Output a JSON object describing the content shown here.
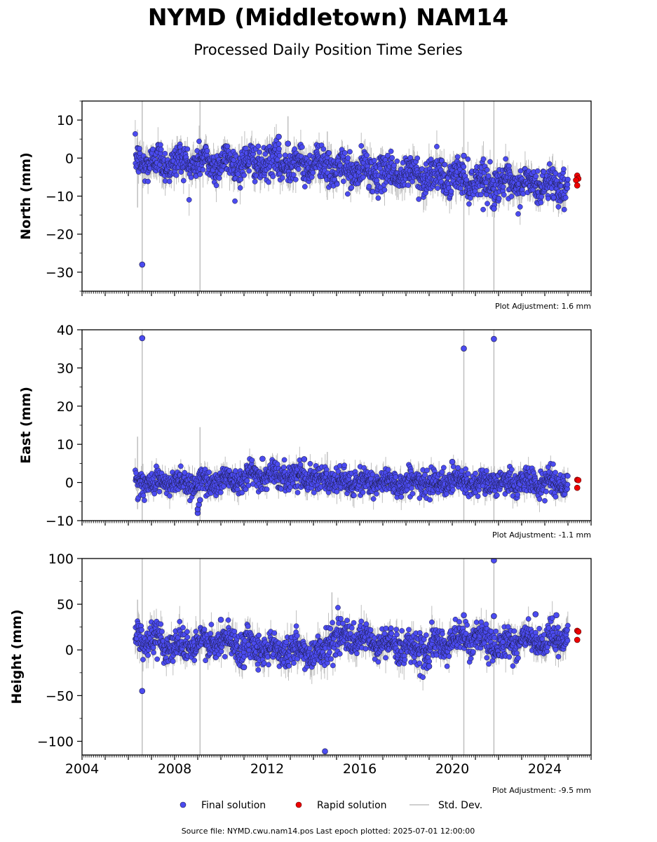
{
  "title": "NYMD (Middletown) NAM14",
  "subtitle": "Processed Daily Position Time Series",
  "source_text": "Source file: NYMD.cwu.nam14.pos  Last epoch plotted: 2025-07-01 12:00:00",
  "legend": {
    "final": "Final solution",
    "rapid": "Rapid solution",
    "std": "Std. Dev."
  },
  "colors": {
    "final_fill": "#4b4bf0",
    "final_edge": "#1a1a40",
    "rapid_fill": "#ee0000",
    "std_line": "#bfbfbf"
  },
  "chart_data": [
    {
      "type": "scatter",
      "ylabel": "North (mm)",
      "adjustment": "Plot Adjustment: 1.6 mm",
      "xlim": [
        2004,
        2026
      ],
      "ylim": [
        -35,
        15
      ],
      "xticks": [
        2004,
        2008,
        2012,
        2016,
        2020,
        2024
      ],
      "yticks": [
        10,
        0,
        -10,
        -20,
        -30
      ],
      "trend": [
        [
          2006.3,
          -1
        ],
        [
          2014.6,
          -1.5
        ],
        [
          2014.7,
          -3
        ],
        [
          2019.0,
          -4.5
        ],
        [
          2022.5,
          -7
        ],
        [
          2025.0,
          -7
        ]
      ],
      "noise": 2.2,
      "std_spikes": [
        {
          "x": 2006.6,
          "y_top": 15,
          "y_bottom": -35
        },
        {
          "x": 2009.1,
          "y_top": 15,
          "y_bottom": -35
        },
        {
          "x": 2020.5,
          "y_top": 15,
          "y_bottom": -35
        },
        {
          "x": 2021.8,
          "y_top": 15,
          "y_bottom": -35
        },
        {
          "x": 2006.4,
          "y_top": 6,
          "y_bottom": -13
        },
        {
          "x": 2014.6,
          "y_top": 7,
          "y_bottom": -11
        },
        {
          "x": 2012.9,
          "y_top": 11,
          "y_bottom": -3
        }
      ],
      "outliers": [
        {
          "x": 2006.6,
          "y": -28
        },
        {
          "x": 2021.8,
          "y": -13.3
        },
        {
          "x": 2012.5,
          "y": 5.6
        },
        {
          "x": 2012.9,
          "y": 3.8
        },
        {
          "x": 2020.5,
          "y": 0.6
        }
      ],
      "rapid": [
        {
          "x": 2025.4,
          "y": -4.6
        },
        {
          "x": 2025.45,
          "y": -5.4
        },
        {
          "x": 2025.4,
          "y": -7.2
        },
        {
          "x": 2025.35,
          "y": -5.8
        }
      ]
    },
    {
      "type": "scatter",
      "ylabel": "East (mm)",
      "adjustment": "Plot Adjustment: -1.1 mm",
      "xlim": [
        2004,
        2026
      ],
      "ylim": [
        -10,
        40
      ],
      "xticks": [
        2004,
        2008,
        2012,
        2016,
        2020,
        2024
      ],
      "yticks": [
        40,
        30,
        20,
        10,
        0,
        -10
      ],
      "trend": [
        [
          2006.3,
          0
        ],
        [
          2009.5,
          0
        ],
        [
          2011.5,
          2
        ],
        [
          2014.0,
          1.5
        ],
        [
          2015.0,
          0
        ],
        [
          2025.0,
          0
        ]
      ],
      "noise": 1.6,
      "std_spikes": [
        {
          "x": 2006.6,
          "y_top": 40,
          "y_bottom": -10
        },
        {
          "x": 2020.5,
          "y_top": 40,
          "y_bottom": -10
        },
        {
          "x": 2021.8,
          "y_top": 40,
          "y_bottom": -10
        },
        {
          "x": 2009.1,
          "y_top": 14.5,
          "y_bottom": -10
        },
        {
          "x": 2006.4,
          "y_top": 12,
          "y_bottom": -7
        },
        {
          "x": 2014.6,
          "y_top": 8,
          "y_bottom": -4
        }
      ],
      "outliers": [
        {
          "x": 2006.6,
          "y": 37.8
        },
        {
          "x": 2020.5,
          "y": 35.1
        },
        {
          "x": 2021.8,
          "y": 37.6
        },
        {
          "x": 2009.0,
          "y": -8.0
        },
        {
          "x": 2009.0,
          "y": -7.0
        },
        {
          "x": 2009.05,
          "y": -5.8
        },
        {
          "x": 2009.1,
          "y": -4.6
        },
        {
          "x": 2020.0,
          "y": 5.4
        },
        {
          "x": 2011.8,
          "y": 6.2
        },
        {
          "x": 2013.6,
          "y": 6.1
        }
      ],
      "rapid": [
        {
          "x": 2025.4,
          "y": 0.7
        },
        {
          "x": 2025.45,
          "y": 0.6
        },
        {
          "x": 2025.4,
          "y": -1.4
        }
      ]
    },
    {
      "type": "scatter",
      "ylabel": "Height (mm)",
      "adjustment": "Plot Adjustment: -9.5 mm",
      "xlim": [
        2004,
        2026
      ],
      "ylim": [
        -115,
        100
      ],
      "xticks": [
        2004,
        2008,
        2012,
        2016,
        2020,
        2024
      ],
      "yticks": [
        100,
        50,
        0,
        -50,
        -100
      ],
      "trend": [
        [
          2006.3,
          15
        ],
        [
          2008.0,
          5
        ],
        [
          2010.5,
          8
        ],
        [
          2012.5,
          0
        ],
        [
          2014.5,
          -3
        ],
        [
          2014.7,
          15
        ],
        [
          2016.0,
          10
        ],
        [
          2019.0,
          0
        ],
        [
          2020.5,
          15
        ],
        [
          2022.0,
          5
        ],
        [
          2023.0,
          12
        ],
        [
          2024.0,
          5
        ],
        [
          2025.0,
          20
        ]
      ],
      "noise": 8.5,
      "std_spikes": [
        {
          "x": 2006.6,
          "y_top": 100,
          "y_bottom": -115
        },
        {
          "x": 2009.1,
          "y_top": 100,
          "y_bottom": -115
        },
        {
          "x": 2020.5,
          "y_top": 100,
          "y_bottom": -115
        },
        {
          "x": 2021.8,
          "y_top": 100,
          "y_bottom": -115
        },
        {
          "x": 2006.4,
          "y_top": 55,
          "y_bottom": -10
        },
        {
          "x": 2014.8,
          "y_top": 63,
          "y_bottom": 0
        }
      ],
      "outliers": [
        {
          "x": 2006.6,
          "y": -45
        },
        {
          "x": 2014.5,
          "y": -111
        },
        {
          "x": 2021.8,
          "y": 98
        },
        {
          "x": 2021.8,
          "y": 37
        },
        {
          "x": 2010.0,
          "y": 33
        },
        {
          "x": 2011.0,
          "y": -19
        },
        {
          "x": 2019.0,
          "y": -18
        },
        {
          "x": 2020.5,
          "y": 38
        },
        {
          "x": 2023.6,
          "y": 39
        },
        {
          "x": 2024.5,
          "y": 38
        }
      ],
      "rapid": [
        {
          "x": 2025.4,
          "y": 21
        },
        {
          "x": 2025.45,
          "y": 20
        },
        {
          "x": 2025.4,
          "y": 11
        }
      ]
    }
  ]
}
